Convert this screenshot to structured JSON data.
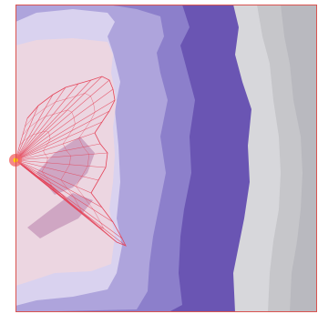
{
  "colors": {
    "background": "#ffffff",
    "frame": "#d9534f",
    "band_gray_1": "#b9b9bf",
    "band_gray_2": "#c6c6ca",
    "band_gray_3": "#d7d7db",
    "band_purple_dark": "#6a55b3",
    "band_purple_mid": "#8c7fcb",
    "band_purple_light": "#aea4dc",
    "band_lavender": "#d9d2ef",
    "band_pink": "#ecd6e1",
    "flow_shadow": "#c596b8",
    "flow_lines": "#e4455a",
    "source_glow": "#f26a6a",
    "source_core": "#ffd200"
  }
}
